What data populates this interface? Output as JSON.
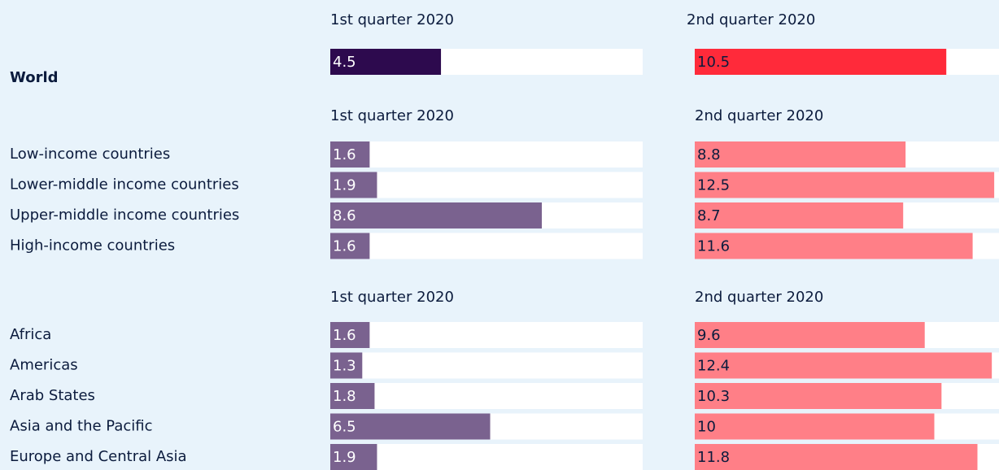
{
  "chart_data": [
    {
      "type": "bar",
      "categories": [
        "World"
      ],
      "series": [
        {
          "name": "1st quarter 2020",
          "color": "#2d0a4e",
          "values": [
            4.5
          ]
        },
        {
          "name": "2nd quarter 2020",
          "color": "#ff2a3a",
          "values": [
            10.5
          ]
        }
      ],
      "xlim": [
        0,
        12.7
      ]
    },
    {
      "type": "bar",
      "categories": [
        "Low-income countries",
        "Lower-middle income countries",
        "Upper-middle income countries",
        "High-income countries"
      ],
      "series": [
        {
          "name": "1st quarter 2020",
          "color": "#7a628f",
          "values": [
            1.6,
            1.9,
            8.6,
            1.6
          ]
        },
        {
          "name": "2nd quarter 2020",
          "color": "#ff7f87",
          "values": [
            8.8,
            12.5,
            8.7,
            11.6
          ]
        }
      ],
      "xlim": [
        0,
        12.7
      ]
    },
    {
      "type": "bar",
      "categories": [
        "Africa",
        "Americas",
        "Arab States",
        "Asia and the Pacific",
        "Europe and Central Asia"
      ],
      "series": [
        {
          "name": "1st quarter 2020",
          "color": "#7a628f",
          "values": [
            1.6,
            1.3,
            1.8,
            6.5,
            1.9
          ]
        },
        {
          "name": "2nd quarter 2020",
          "color": "#ff7f87",
          "values": [
            9.6,
            12.4,
            10.3,
            10.0,
            11.8
          ]
        }
      ],
      "xlim": [
        0,
        12.7
      ]
    }
  ]
}
